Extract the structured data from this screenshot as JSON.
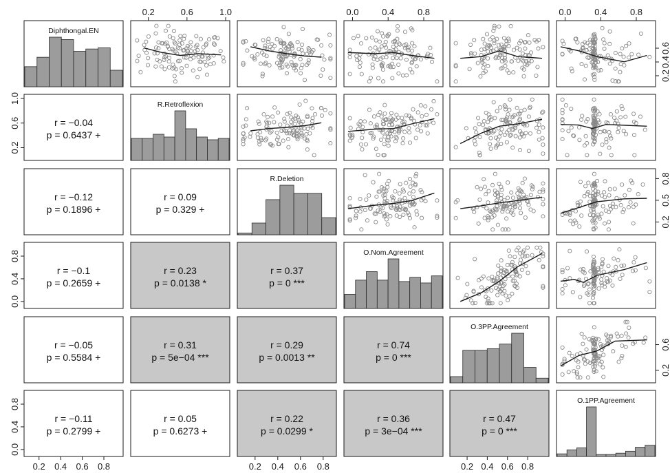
{
  "chart_data": {
    "type": "scatter",
    "variables": [
      "Diphthongal.EN",
      "R.Retroflexion",
      "R.Deletion",
      "O.Nom.Agreement",
      "O.3PP.Agreement",
      "O.1PP.Agreement"
    ],
    "axis_ticks": {
      "top": [
        {
          "col": 1,
          "ticks": [
            "0.2",
            "0.6",
            "1.0"
          ],
          "values": [
            0.2,
            0.6,
            1.0
          ],
          "range": [
            0.06,
            1.0
          ]
        },
        {
          "col": 3,
          "ticks": [
            "0.0",
            "0.4",
            "0.8"
          ],
          "values": [
            0.0,
            0.4,
            0.8
          ],
          "range": [
            -0.05,
            0.97
          ]
        },
        {
          "col": 5,
          "ticks": [
            "0.0",
            "0.4",
            "0.8"
          ],
          "values": [
            0.0,
            0.4,
            0.8
          ],
          "range": [
            -0.05,
            0.97
          ]
        }
      ],
      "bottom": [
        {
          "col": 0,
          "ticks": [
            "0.2",
            "0.4",
            "0.6",
            "0.8"
          ],
          "values": [
            0.2,
            0.4,
            0.6,
            0.8
          ],
          "range": [
            0.1,
            0.94
          ]
        },
        {
          "col": 2,
          "ticks": [
            "0.2",
            "0.4",
            "0.6",
            "0.8"
          ],
          "values": [
            0.2,
            0.4,
            0.6,
            0.8
          ],
          "range": [
            0.08,
            0.88
          ]
        },
        {
          "col": 4,
          "ticks": [
            "0.2",
            "0.4",
            "0.6",
            "0.8"
          ],
          "values": [
            0.2,
            0.4,
            0.6,
            0.8
          ],
          "range": [
            0.07,
            0.97
          ]
        }
      ],
      "left": [
        {
          "row": 1,
          "ticks": [
            "0.2",
            "0.6",
            "1.0"
          ],
          "values": [
            0.2,
            0.6,
            1.0
          ],
          "range": [
            0.06,
            1.0
          ]
        },
        {
          "row": 3,
          "ticks": [
            "0.0",
            "0.4",
            "0.8"
          ],
          "values": [
            0.0,
            0.4,
            0.8
          ],
          "range": [
            -0.05,
            0.97
          ]
        },
        {
          "row": 5,
          "ticks": [
            "0.0",
            "0.4",
            "0.8"
          ],
          "values": [
            0.0,
            0.4,
            0.8
          ],
          "range": [
            -0.05,
            0.97
          ]
        }
      ],
      "right": [
        {
          "row": 0,
          "ticks": [
            "0.2",
            "0.4",
            "0.6"
          ],
          "values": [
            0.2,
            0.4,
            0.6
          ],
          "range": [
            0.1,
            0.94
          ]
        },
        {
          "row": 2,
          "ticks": [
            "0.2",
            "0.5",
            "0.8"
          ],
          "values": [
            0.2,
            0.5,
            0.8
          ],
          "range": [
            0.08,
            0.88
          ]
        },
        {
          "row": 4,
          "ticks": [
            "0.2",
            "0.6"
          ],
          "values": [
            0.2,
            0.6
          ],
          "range": [
            0.07,
            0.97
          ]
        }
      ]
    },
    "histograms": [
      {
        "variable": "Diphthongal.EN",
        "counts": [
          17,
          25,
          42,
          40,
          30,
          32,
          33,
          14
        ]
      },
      {
        "variable": "R.Retroflexion",
        "counts": [
          16,
          16,
          19,
          17,
          36,
          23,
          17,
          15,
          16
        ]
      },
      {
        "variable": "R.Deletion",
        "counts": [
          2,
          13,
          39,
          55,
          46,
          46,
          19
        ]
      },
      {
        "variable": "O.Nom.Agreement",
        "counts": [
          10,
          20,
          26,
          20,
          35,
          19,
          22,
          18,
          23
        ]
      },
      {
        "variable": "O.3PP.Agreement",
        "counts": [
          4,
          21,
          21,
          22,
          25,
          32,
          10,
          3
        ]
      },
      {
        "variable": "O.1PP.Agreement",
        "counts": [
          4,
          10,
          13,
          75,
          3,
          3,
          5,
          8,
          14,
          17
        ]
      }
    ],
    "correlations": [
      {
        "pair": [
          "R.Retroflexion",
          "Diphthongal.EN"
        ],
        "r": "r = −0.04",
        "p": "p = 0.6437 +",
        "shaded": false
      },
      {
        "pair": [
          "R.Deletion",
          "Diphthongal.EN"
        ],
        "r": "r = −0.12",
        "p": "p = 0.1896 +",
        "shaded": false
      },
      {
        "pair": [
          "R.Deletion",
          "R.Retroflexion"
        ],
        "r": "r = 0.09",
        "p": "p = 0.329 +",
        "shaded": false
      },
      {
        "pair": [
          "O.Nom.Agreement",
          "Diphthongal.EN"
        ],
        "r": "r = −0.1",
        "p": "p = 0.2659 +",
        "shaded": false
      },
      {
        "pair": [
          "O.Nom.Agreement",
          "R.Retroflexion"
        ],
        "r": "r = 0.23",
        "p": "p = 0.0138 *",
        "shaded": true
      },
      {
        "pair": [
          "O.Nom.Agreement",
          "R.Deletion"
        ],
        "r": "r = 0.37",
        "p": "p = 0 ***",
        "shaded": true
      },
      {
        "pair": [
          "O.3PP.Agreement",
          "Diphthongal.EN"
        ],
        "r": "r = −0.05",
        "p": "p = 0.5584 +",
        "shaded": false
      },
      {
        "pair": [
          "O.3PP.Agreement",
          "R.Retroflexion"
        ],
        "r": "r = 0.31",
        "p": "p = 5e−04 ***",
        "shaded": true
      },
      {
        "pair": [
          "O.3PP.Agreement",
          "R.Deletion"
        ],
        "r": "r = 0.29",
        "p": "p = 0.0013 **",
        "shaded": true
      },
      {
        "pair": [
          "O.3PP.Agreement",
          "O.Nom.Agreement"
        ],
        "r": "r = 0.74",
        "p": "p = 0 ***",
        "shaded": true
      },
      {
        "pair": [
          "O.1PP.Agreement",
          "Diphthongal.EN"
        ],
        "r": "r = −0.11",
        "p": "p = 0.2799 +",
        "shaded": false
      },
      {
        "pair": [
          "O.1PP.Agreement",
          "R.Retroflexion"
        ],
        "r": "r = 0.05",
        "p": "p = 0.6273 +",
        "shaded": false
      },
      {
        "pair": [
          "O.1PP.Agreement",
          "R.Deletion"
        ],
        "r": "r = 0.22",
        "p": "p = 0.0299 *",
        "shaded": true
      },
      {
        "pair": [
          "O.1PP.Agreement",
          "O.Nom.Agreement"
        ],
        "r": "r = 0.36",
        "p": "p = 3e−04 ***",
        "shaded": true
      },
      {
        "pair": [
          "O.1PP.Agreement",
          "O.3PP.Agreement"
        ],
        "r": "r = 0.47",
        "p": "p = 0 ***",
        "shaded": true
      }
    ],
    "scatter_panels": [
      {
        "x": "R.Retroflexion",
        "y": "Diphthongal.EN",
        "n": 120,
        "x_mean": 0.52,
        "y_mean": 0.48,
        "trend": [
          [
            0.1,
            0.6
          ],
          [
            0.3,
            0.52
          ],
          [
            0.5,
            0.47
          ],
          [
            0.7,
            0.5
          ],
          [
            0.95,
            0.48
          ]
        ]
      },
      {
        "x": "R.Deletion",
        "y": "Diphthongal.EN",
        "n": 120,
        "x_mean": 0.48,
        "y_mean": 0.48,
        "trend": [
          [
            0.1,
            0.62
          ],
          [
            0.3,
            0.55
          ],
          [
            0.5,
            0.5
          ],
          [
            0.7,
            0.46
          ],
          [
            0.88,
            0.44
          ]
        ]
      },
      {
        "x": "O.Nom.Agreement",
        "y": "Diphthongal.EN",
        "n": 120,
        "x_mean": 0.48,
        "y_mean": 0.48,
        "trend": [
          [
            0.0,
            0.52
          ],
          [
            0.3,
            0.5
          ],
          [
            0.5,
            0.52
          ],
          [
            0.7,
            0.47
          ],
          [
            0.95,
            0.42
          ]
        ]
      },
      {
        "x": "O.3PP.Agreement",
        "y": "Diphthongal.EN",
        "n": 120,
        "x_mean": 0.55,
        "y_mean": 0.48,
        "trend": [
          [
            0.07,
            0.42
          ],
          [
            0.3,
            0.45
          ],
          [
            0.5,
            0.55
          ],
          [
            0.7,
            0.45
          ],
          [
            0.97,
            0.42
          ]
        ]
      },
      {
        "x": "O.1PP.Agreement",
        "y": "Diphthongal.EN",
        "n": 120,
        "x_mean": 0.4,
        "y_mean": 0.48,
        "trend": [
          [
            0.0,
            0.62
          ],
          [
            0.2,
            0.55
          ],
          [
            0.4,
            0.45
          ],
          [
            0.7,
            0.36
          ],
          [
            0.95,
            0.47
          ]
        ]
      },
      {
        "x": "R.Deletion",
        "y": "R.Retroflexion",
        "n": 120,
        "x_mean": 0.48,
        "y_mean": 0.52,
        "trend": [
          [
            0.1,
            0.44
          ],
          [
            0.3,
            0.48
          ],
          [
            0.5,
            0.5
          ],
          [
            0.7,
            0.53
          ],
          [
            0.88,
            0.58
          ]
        ]
      },
      {
        "x": "O.Nom.Agreement",
        "y": "R.Retroflexion",
        "n": 120,
        "x_mean": 0.48,
        "y_mean": 0.52,
        "trend": [
          [
            0.0,
            0.43
          ],
          [
            0.3,
            0.47
          ],
          [
            0.5,
            0.48
          ],
          [
            0.7,
            0.56
          ],
          [
            0.95,
            0.65
          ]
        ]
      },
      {
        "x": "O.3PP.Agreement",
        "y": "R.Retroflexion",
        "n": 120,
        "x_mean": 0.55,
        "y_mean": 0.52,
        "trend": [
          [
            0.07,
            0.22
          ],
          [
            0.3,
            0.4
          ],
          [
            0.5,
            0.52
          ],
          [
            0.7,
            0.56
          ],
          [
            0.97,
            0.64
          ]
        ]
      },
      {
        "x": "O.1PP.Agreement",
        "y": "R.Retroflexion",
        "n": 120,
        "x_mean": 0.4,
        "y_mean": 0.52,
        "trend": [
          [
            0.0,
            0.55
          ],
          [
            0.2,
            0.54
          ],
          [
            0.35,
            0.48
          ],
          [
            0.5,
            0.55
          ],
          [
            0.95,
            0.52
          ]
        ]
      },
      {
        "x": "O.Nom.Agreement",
        "y": "R.Deletion",
        "n": 120,
        "x_mean": 0.48,
        "y_mean": 0.48,
        "trend": [
          [
            0.0,
            0.38
          ],
          [
            0.3,
            0.44
          ],
          [
            0.5,
            0.47
          ],
          [
            0.7,
            0.52
          ],
          [
            0.95,
            0.65
          ]
        ]
      },
      {
        "x": "O.3PP.Agreement",
        "y": "R.Deletion",
        "n": 120,
        "x_mean": 0.55,
        "y_mean": 0.48,
        "trend": [
          [
            0.07,
            0.38
          ],
          [
            0.3,
            0.43
          ],
          [
            0.5,
            0.48
          ],
          [
            0.7,
            0.52
          ],
          [
            0.97,
            0.58
          ]
        ]
      },
      {
        "x": "O.1PP.Agreement",
        "y": "R.Deletion",
        "n": 120,
        "x_mean": 0.4,
        "y_mean": 0.48,
        "trend": [
          [
            0.0,
            0.3
          ],
          [
            0.2,
            0.4
          ],
          [
            0.4,
            0.5
          ],
          [
            0.7,
            0.55
          ],
          [
            0.95,
            0.56
          ]
        ]
      },
      {
        "x": "O.3PP.Agreement",
        "y": "O.Nom.Agreement",
        "n": 120,
        "x_mean": 0.55,
        "y_mean": 0.48,
        "trend": [
          [
            0.07,
            0.05
          ],
          [
            0.3,
            0.2
          ],
          [
            0.5,
            0.4
          ],
          [
            0.7,
            0.65
          ],
          [
            0.97,
            0.88
          ]
        ]
      },
      {
        "x": "O.1PP.Agreement",
        "y": "O.Nom.Agreement",
        "n": 120,
        "x_mean": 0.4,
        "y_mean": 0.48,
        "trend": [
          [
            0.0,
            0.4
          ],
          [
            0.15,
            0.43
          ],
          [
            0.25,
            0.38
          ],
          [
            0.4,
            0.5
          ],
          [
            0.7,
            0.6
          ],
          [
            0.95,
            0.72
          ]
        ]
      },
      {
        "x": "O.1PP.Agreement",
        "y": "O.3PP.Agreement",
        "n": 120,
        "x_mean": 0.4,
        "y_mean": 0.55,
        "trend": [
          [
            0.0,
            0.22
          ],
          [
            0.2,
            0.4
          ],
          [
            0.4,
            0.48
          ],
          [
            0.6,
            0.65
          ],
          [
            0.95,
            0.67
          ]
        ]
      }
    ]
  }
}
